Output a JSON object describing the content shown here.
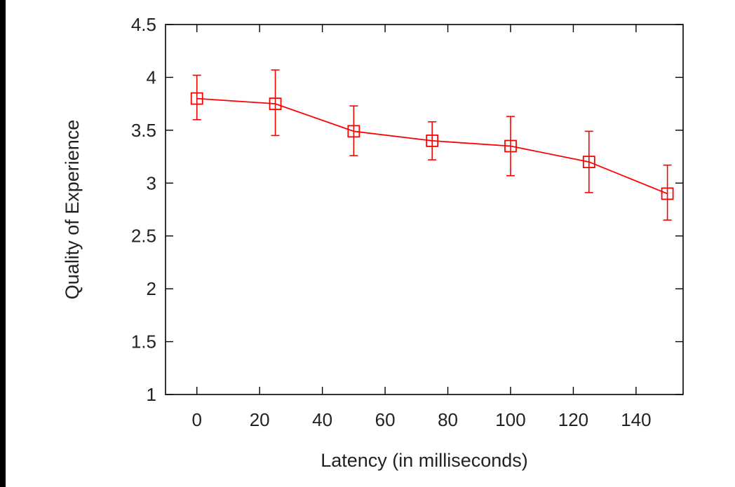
{
  "colors": {
    "background": "#ffffff",
    "page_border": "#000000",
    "axis": "#000000",
    "text": "#222222",
    "series": "#ff0000"
  },
  "chart_data": {
    "type": "line",
    "title": "",
    "xlabel": "Latency (in milliseconds)",
    "ylabel": "Quality of Experience",
    "xlim": [
      -10,
      155
    ],
    "ylim": [
      1,
      4.5
    ],
    "xticks": [
      0,
      20,
      40,
      60,
      80,
      100,
      120,
      140
    ],
    "xtick_labels": [
      "0",
      "20",
      "40",
      "60",
      "80",
      "100",
      "120",
      "140"
    ],
    "yticks": [
      1,
      1.5,
      2,
      2.5,
      3,
      3.5,
      4,
      4.5
    ],
    "ytick_labels": [
      "1",
      "1.5",
      "2",
      "2.5",
      "3",
      "3.5",
      "4",
      "4.5"
    ],
    "grid": false,
    "legend": "none",
    "marker": "open-square",
    "series": [
      {
        "color": "#ff0000",
        "x": [
          0,
          25,
          50,
          75,
          100,
          125,
          150
        ],
        "y": [
          3.8,
          3.75,
          3.49,
          3.4,
          3.35,
          3.2,
          2.9
        ],
        "err_low": [
          3.6,
          3.45,
          3.26,
          3.22,
          3.07,
          2.91,
          2.65
        ],
        "err_high": [
          4.02,
          4.07,
          3.73,
          3.58,
          3.63,
          3.49,
          3.17
        ]
      }
    ]
  }
}
